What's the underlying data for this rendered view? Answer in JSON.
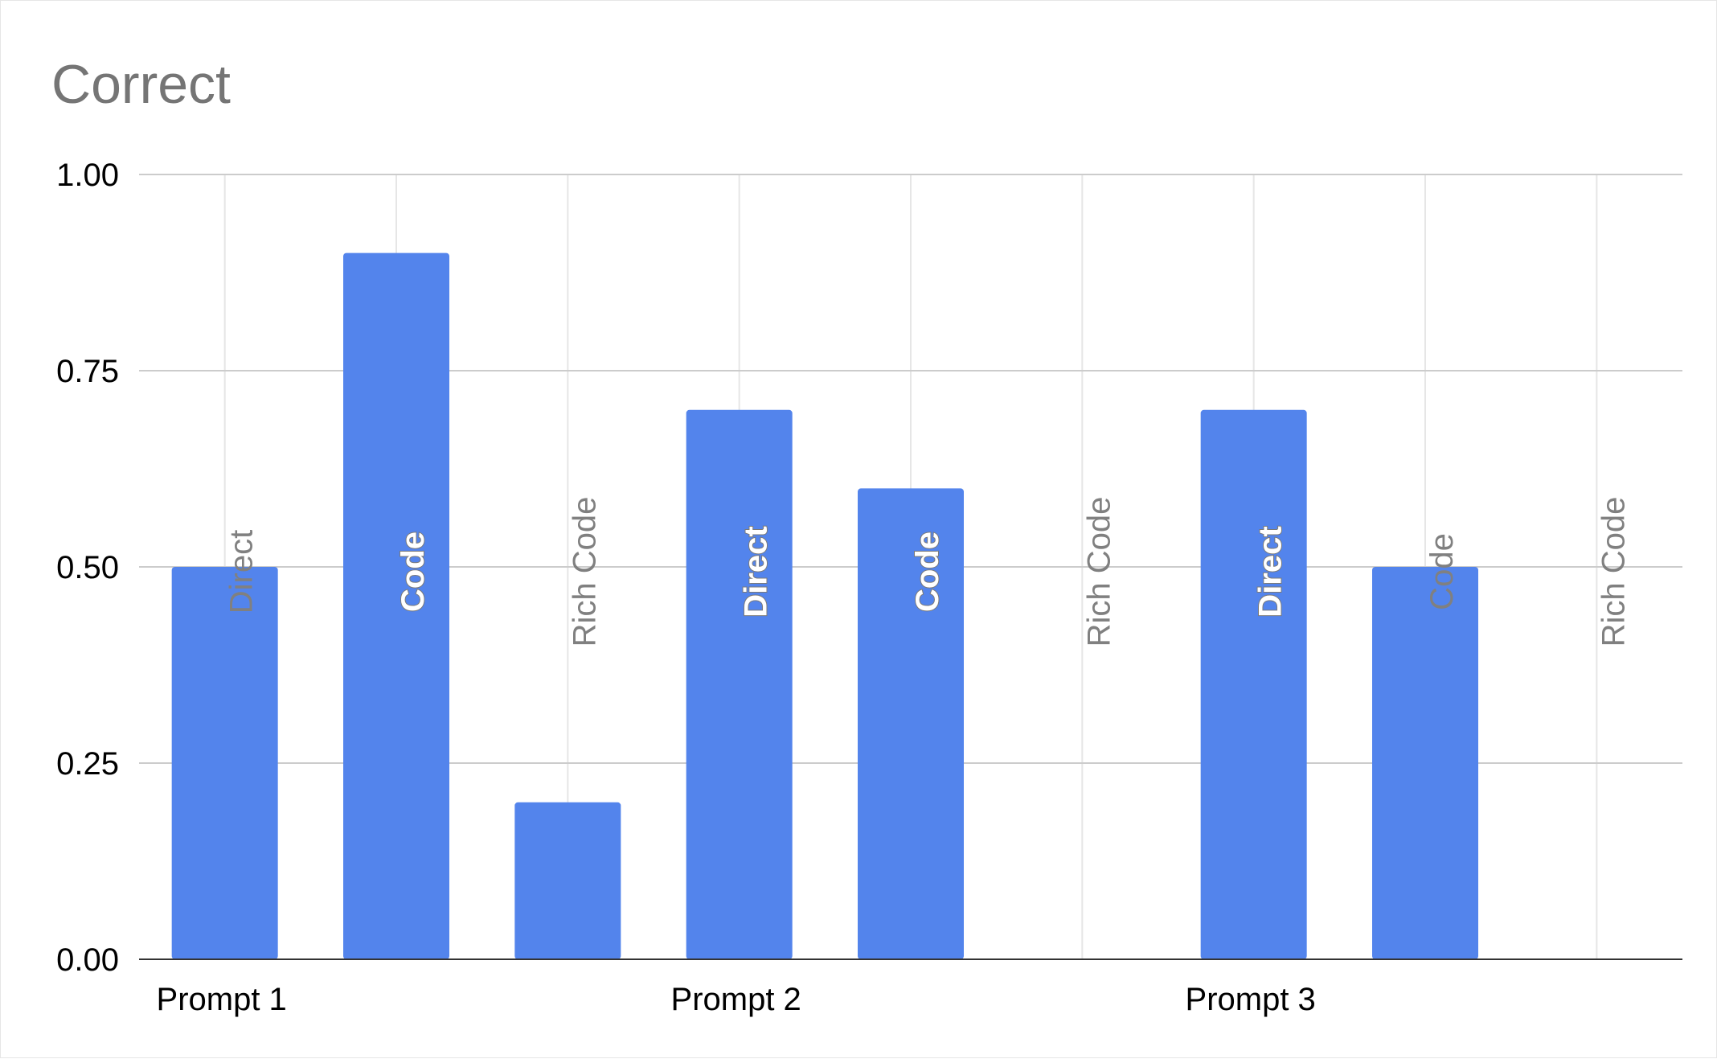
{
  "chart_data": {
    "type": "bar",
    "title": "Correct",
    "xlabel": "",
    "ylabel": "",
    "ylim": [
      0,
      1
    ],
    "yticks": [
      "0.00",
      "0.25",
      "0.50",
      "0.75",
      "1.00"
    ],
    "grid": true,
    "legend": "none",
    "bar_color": "#5384ec",
    "category_labels": [
      "Prompt 1",
      "Prompt 2",
      "Prompt 3"
    ],
    "bars": [
      {
        "label": "Direct",
        "value": 0.5
      },
      {
        "label": "Code",
        "value": 0.9
      },
      {
        "label": "Rich Code",
        "value": 0.2
      },
      {
        "label": "Direct",
        "value": 0.7
      },
      {
        "label": "Code",
        "value": 0.6
      },
      {
        "label": "Rich Code",
        "value": 0.0
      },
      {
        "label": "Direct",
        "value": 0.7
      },
      {
        "label": "Code",
        "value": 0.5
      },
      {
        "label": "Rich Code",
        "value": 0.0
      }
    ]
  }
}
